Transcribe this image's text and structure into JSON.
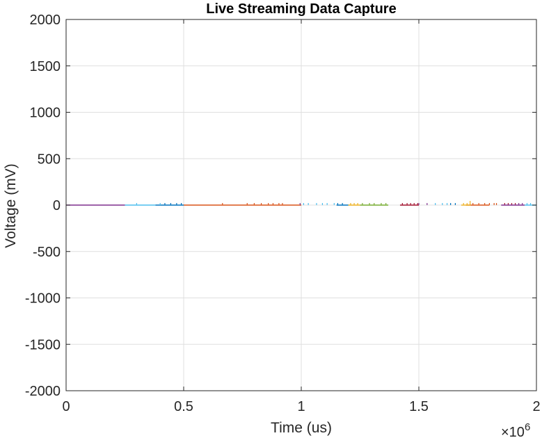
{
  "chart_data": {
    "type": "line",
    "title": "Live Streaming Data Capture",
    "xlabel": "Time (us)",
    "ylabel": "Voltage (mV)",
    "xlim": [
      0,
      2000000
    ],
    "ylim": [
      -2000,
      2000
    ],
    "x_ticks": [
      0,
      500000,
      1000000,
      1500000,
      2000000
    ],
    "x_tick_labels": [
      "0",
      "0.5",
      "1",
      "1.5",
      "2"
    ],
    "x_exponent_label": "×10",
    "x_exponent_power": "6",
    "y_ticks": [
      2000,
      1500,
      1000,
      500,
      0,
      -500,
      -1000,
      -1500,
      -2000
    ],
    "y_tick_labels": [
      "2000",
      "1500",
      "1000",
      "500",
      "0",
      "-500",
      "-1000",
      "-1500",
      "-2000"
    ],
    "grid": true,
    "series": [
      {
        "color": "#0072BD",
        "segment": [
          380000,
          500000
        ],
        "spikes": [
          420000,
          445000,
          470000,
          490000
        ]
      },
      {
        "color": "#D95319",
        "segment": [
          500000,
          1000000
        ],
        "spikes": [
          665000,
          770000,
          800000,
          830000,
          860000,
          880000,
          905000,
          920000
        ]
      },
      {
        "color": "#EDB120",
        "segment": [
          1200000,
          1250000
        ],
        "spikes": [
          1210000,
          1225000,
          1240000
        ]
      },
      {
        "color": "#7E2F8E",
        "segment": [
          0,
          250000
        ],
        "spikes": [
          995000,
          1500000,
          1535000
        ]
      },
      {
        "color": "#77AC30",
        "segment": [
          1250000,
          1370000
        ],
        "spikes": [
          1260000,
          1290000,
          1310000,
          1340000,
          1360000
        ]
      },
      {
        "color": "#4DBEEE",
        "segment": [
          250000,
          380000
        ],
        "spikes": [
          300000,
          400000,
          1010000,
          1030000,
          1065000,
          1090000,
          1570000,
          1600000,
          1620000
        ]
      },
      {
        "color": "#A2142F",
        "segment": [
          1420000,
          1500000
        ],
        "spikes": [
          1430000,
          1450000,
          1465000,
          1480000,
          1495000,
          1865000,
          1880000,
          1895000,
          1910000
        ]
      },
      {
        "color": "#0072BD",
        "segment": [
          1150000,
          1200000
        ],
        "spikes": [
          1155000,
          1175000,
          1635000,
          1655000
        ]
      },
      {
        "color": "#D95319",
        "segment": [
          1700000,
          1800000
        ],
        "spikes": [
          1730000,
          1755000,
          1780000,
          1800000,
          1820000,
          1830000
        ]
      },
      {
        "color": "#EDB120",
        "segment": [
          1680000,
          1720000
        ],
        "spikes": [
          1690000,
          1705000,
          1718000
        ]
      },
      {
        "color": "#7E2F8E",
        "segment": [
          1850000,
          1950000
        ],
        "spikes": [
          1925000,
          1940000
        ]
      },
      {
        "color": "#4DBEEE",
        "segment": [
          1950000,
          2000000
        ],
        "spikes": [
          1110000,
          1140000,
          1960000,
          1975000
        ]
      }
    ]
  }
}
